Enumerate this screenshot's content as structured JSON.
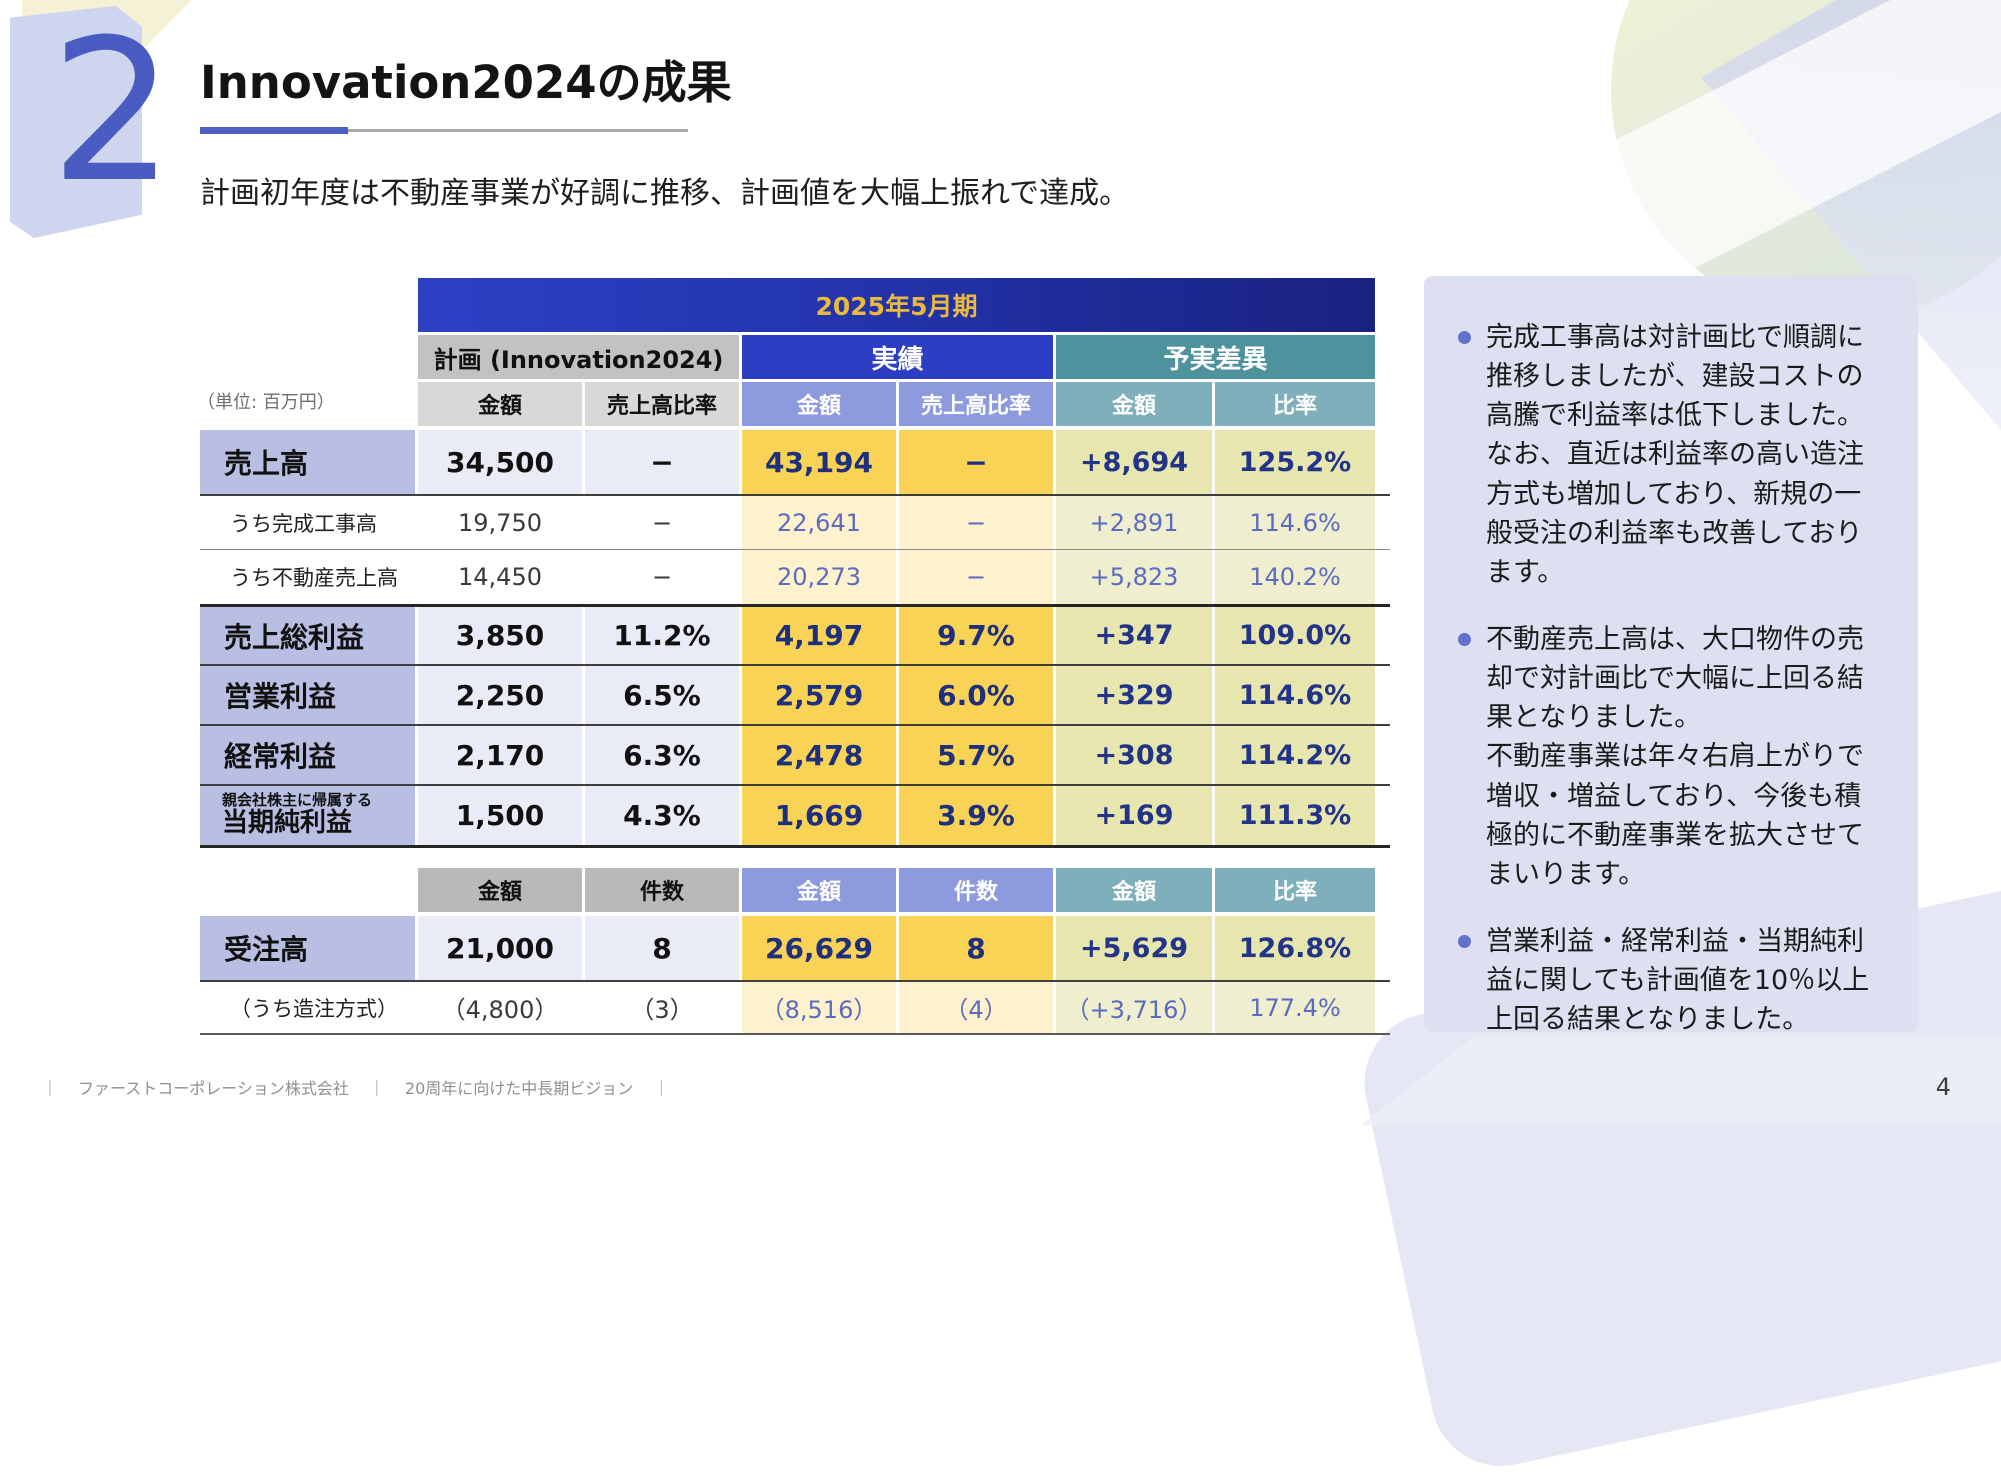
{
  "header": {
    "section_number": "2",
    "title": "Innovation2024の成果",
    "subtitle": "計画初年度は不動産事業が好調に推移、計画値を大幅上振れで達成。"
  },
  "unit_label": "（単位: 百万円）",
  "table": {
    "period_header": "2025年5月期",
    "groups": {
      "plan": "計画 (Innovation2024)",
      "actual": "実績",
      "diff": "予実差異"
    },
    "columns": {
      "plan_amount": "金額",
      "plan_ratio": "売上高比率",
      "actual_amount": "金額",
      "actual_ratio": "売上高比率",
      "diff_amount": "金額",
      "diff_ratio": "比率"
    },
    "rows": [
      {
        "label": "売上高",
        "plan_amount": "34,500",
        "plan_ratio": "−",
        "actual_amount": "43,194",
        "actual_ratio": "−",
        "diff_amount": "+8,694",
        "diff_ratio": "125.2%"
      },
      {
        "label": "うち完成工事高",
        "plan_amount": "19,750",
        "plan_ratio": "−",
        "actual_amount": "22,641",
        "actual_ratio": "−",
        "diff_amount": "+2,891",
        "diff_ratio": "114.6%"
      },
      {
        "label": "うち不動産売上高",
        "plan_amount": "14,450",
        "plan_ratio": "−",
        "actual_amount": "20,273",
        "actual_ratio": "−",
        "diff_amount": "+5,823",
        "diff_ratio": "140.2%"
      },
      {
        "label": "売上総利益",
        "plan_amount": "3,850",
        "plan_ratio": "11.2%",
        "actual_amount": "4,197",
        "actual_ratio": "9.7%",
        "diff_amount": "+347",
        "diff_ratio": "109.0%"
      },
      {
        "label": "営業利益",
        "plan_amount": "2,250",
        "plan_ratio": "6.5%",
        "actual_amount": "2,579",
        "actual_ratio": "6.0%",
        "diff_amount": "+329",
        "diff_ratio": "114.6%"
      },
      {
        "label": "経常利益",
        "plan_amount": "2,170",
        "plan_ratio": "6.3%",
        "actual_amount": "2,478",
        "actual_ratio": "5.7%",
        "diff_amount": "+308",
        "diff_ratio": "114.2%"
      },
      {
        "label_note": "親会社株主に帰属する",
        "label": "当期純利益",
        "plan_amount": "1,500",
        "plan_ratio": "4.3%",
        "actual_amount": "1,669",
        "actual_ratio": "3.9%",
        "diff_amount": "+169",
        "diff_ratio": "111.3%"
      }
    ]
  },
  "orders_table": {
    "columns": {
      "plan_amount": "金額",
      "plan_count": "件数",
      "actual_amount": "金額",
      "actual_count": "件数",
      "diff_amount": "金額",
      "diff_ratio": "比率"
    },
    "rows": [
      {
        "label": "受注高",
        "plan_amount": "21,000",
        "plan_count": "8",
        "actual_amount": "26,629",
        "actual_count": "8",
        "diff_amount": "+5,629",
        "diff_ratio": "126.8%"
      },
      {
        "label": "（うち造注方式）",
        "plan_amount": "（4,800）",
        "plan_count": "（3）",
        "actual_amount": "（8,516）",
        "actual_count": "（4）",
        "diff_amount": "（+3,716）",
        "diff_ratio": "177.4%"
      }
    ]
  },
  "notes": {
    "items": [
      "完成工事高は対計画比で順調に推移しましたが、建設コストの高騰で利益率は低下しました。\nなお、直近は利益率の高い造注方式も増加しており、新規の一般受注の利益率も改善しております。",
      "不動産売上高は、大口物件の売却で対計画比で大幅に上回る結果となりました。\n不動産事業は年々右肩上がりで増収・増益しており、今後も積極的に不動産事業を拡大させてまいります。",
      "営業利益・経常利益・当期純利益に関しても計画値を10％以上上回る結果となりました。"
    ]
  },
  "footer": {
    "divider": "｜",
    "company": "ファーストコーポレーション株式会社",
    "vision": "20周年に向けた中長期ビジョン"
  },
  "page": {
    "number": "4"
  },
  "colors": {
    "accent_blue": "#4a5fc1",
    "banner_navy": "#19227f",
    "banner_text_gold": "#e9b93e",
    "actual_blue": "#2c3ec3",
    "diff_teal": "#4e929e",
    "row_label_periwinkle": "#b8bfe2",
    "actual_yellow": "#f9d355",
    "diff_olive": "#e8e6af",
    "panel_lavender": "#dce0f1"
  }
}
